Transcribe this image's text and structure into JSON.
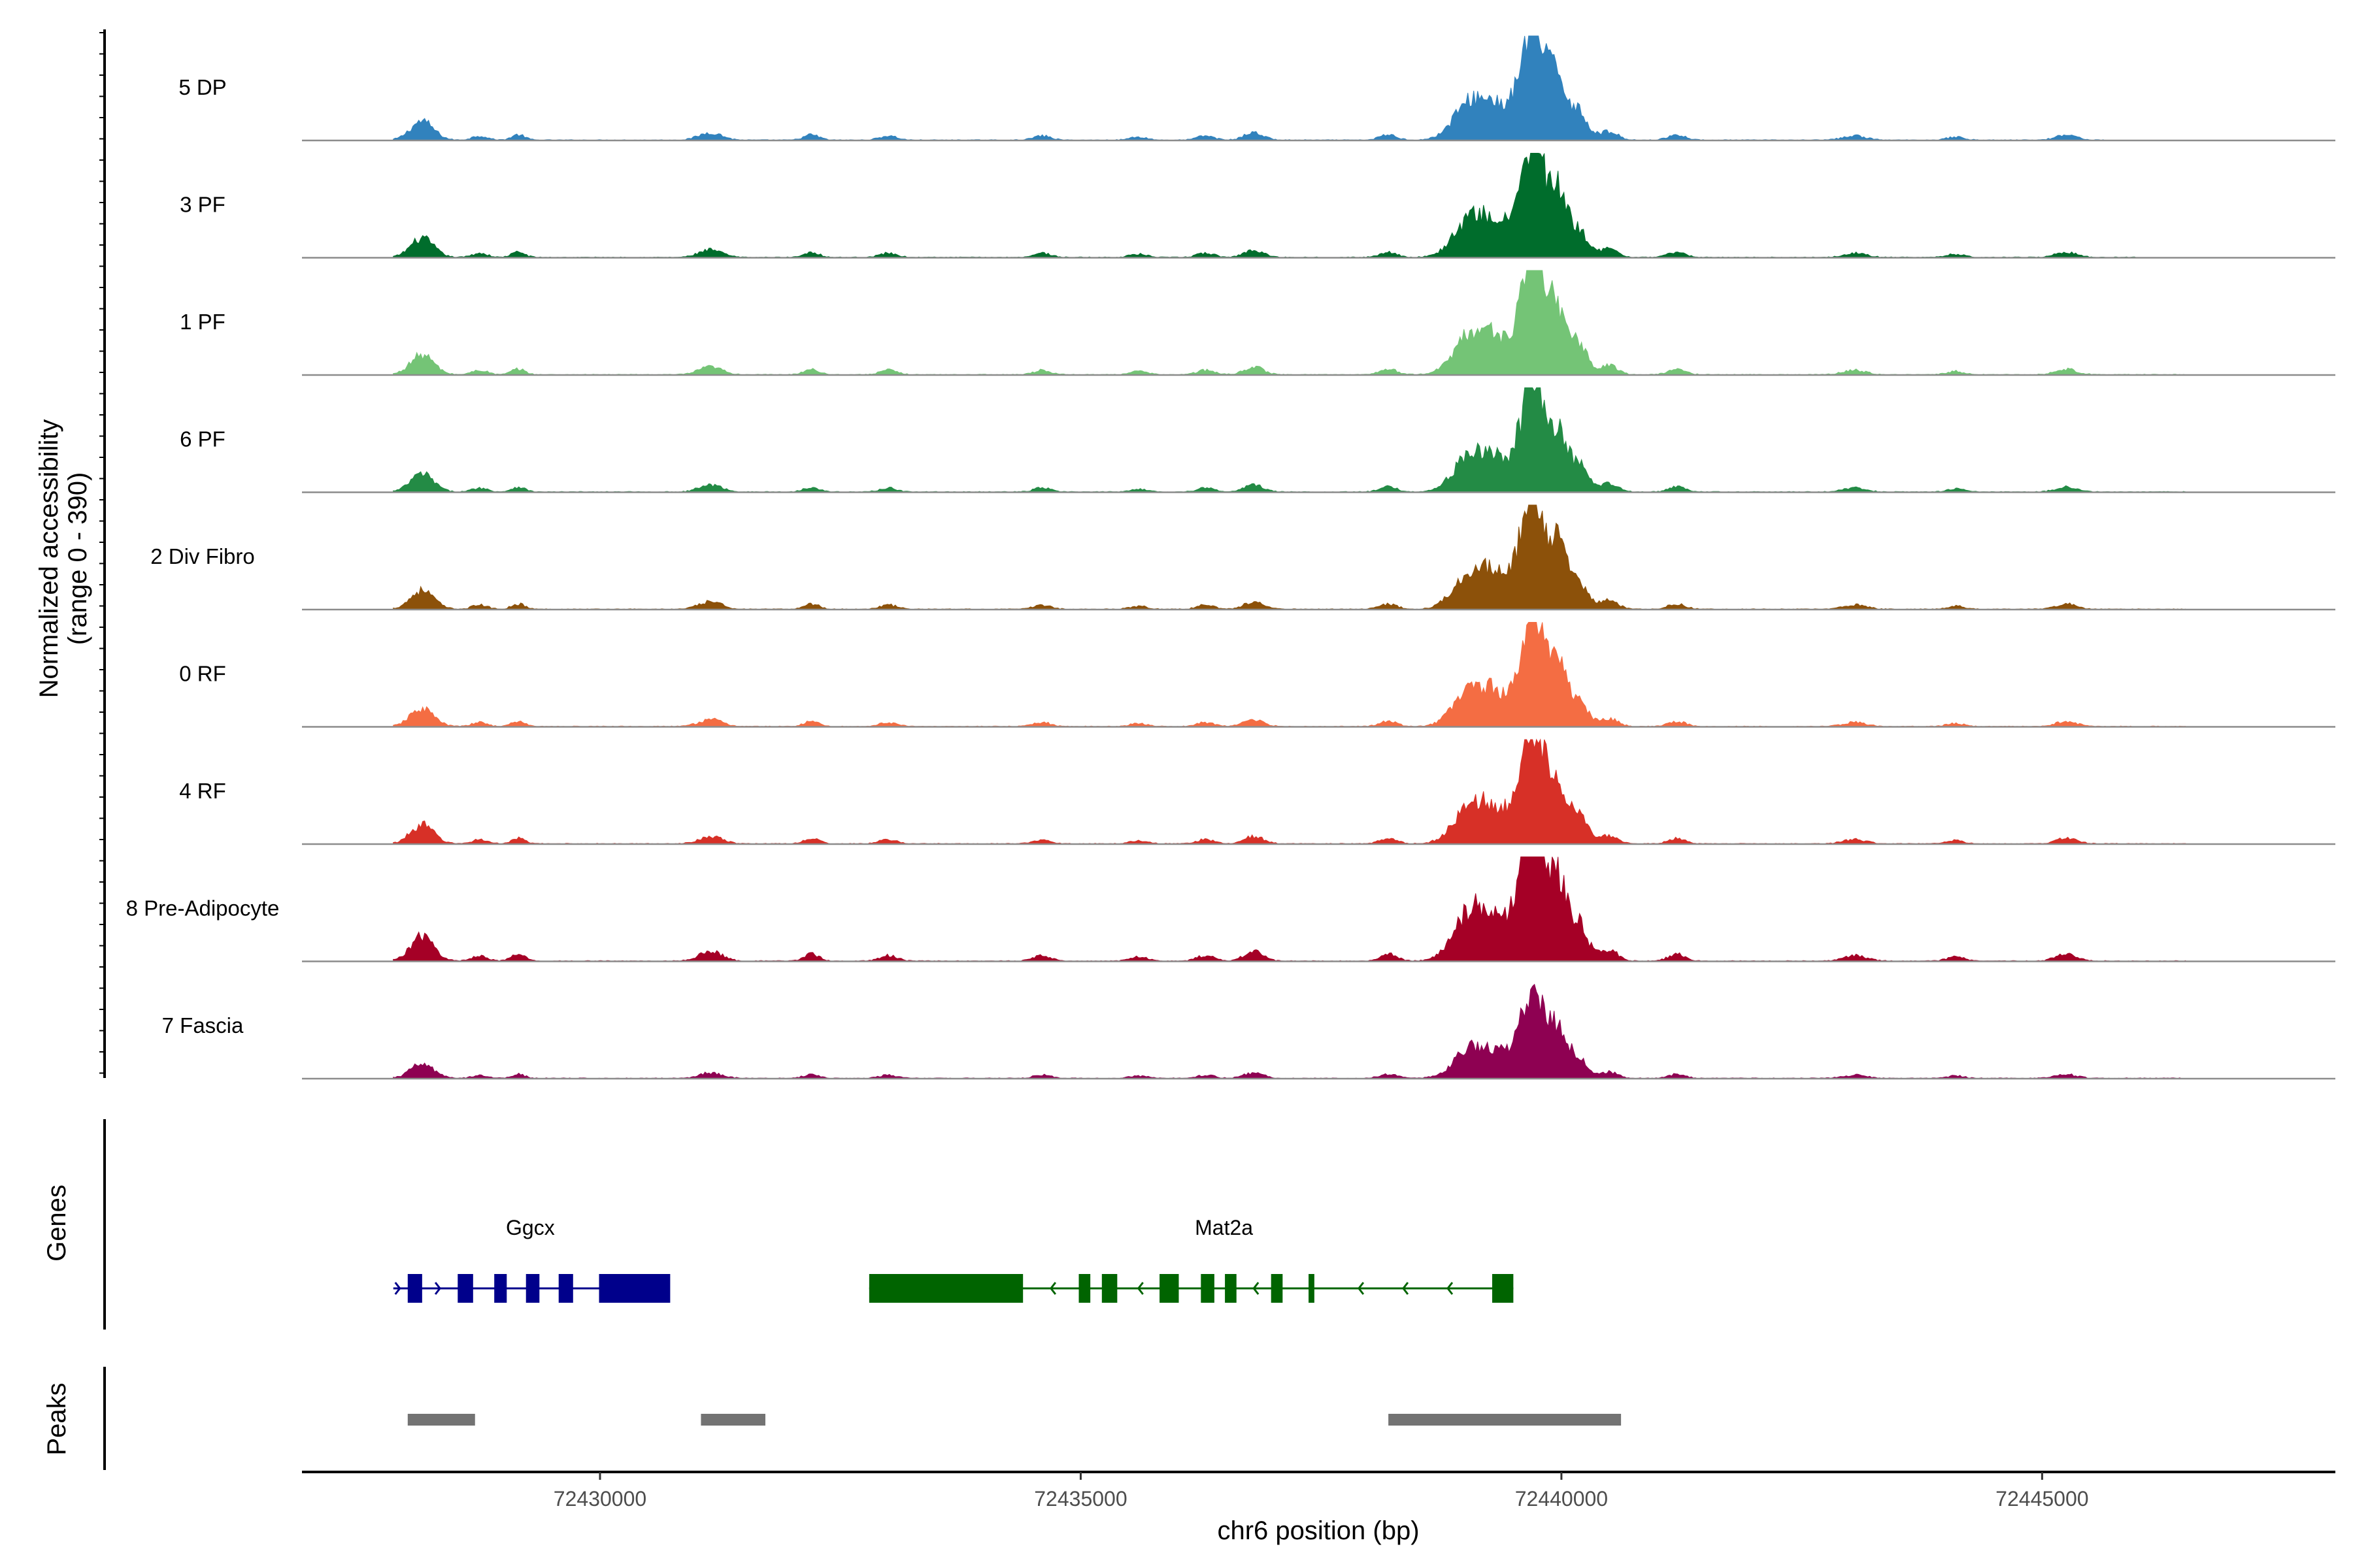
{
  "chart_data": {
    "type": "area",
    "title": "",
    "ylabel_line1": "Normalized accessibility",
    "ylabel_line2": "(range 0 - 390)",
    "ylim": [
      0,
      390
    ],
    "xlabel": "chr6 position (bp)",
    "xlim": [
      72426900,
      72448050
    ],
    "xticks": [
      {
        "value": 72430000,
        "label": "72430000"
      },
      {
        "value": 72435000,
        "label": "72435000"
      },
      {
        "value": 72440000,
        "label": "72440000"
      },
      {
        "value": 72445000,
        "label": "72445000"
      }
    ],
    "peak_shape": [
      {
        "pos": 72428150,
        "h": 0.18,
        "w": 120
      },
      {
        "pos": 72428750,
        "h": 0.04,
        "w": 80
      },
      {
        "pos": 72429150,
        "h": 0.05,
        "w": 70
      },
      {
        "pos": 72431150,
        "h": 0.07,
        "w": 120
      },
      {
        "pos": 72432200,
        "h": 0.05,
        "w": 80
      },
      {
        "pos": 72433000,
        "h": 0.04,
        "w": 90
      },
      {
        "pos": 72434600,
        "h": 0.04,
        "w": 90
      },
      {
        "pos": 72435600,
        "h": 0.03,
        "w": 90
      },
      {
        "pos": 72436300,
        "h": 0.04,
        "w": 90
      },
      {
        "pos": 72436800,
        "h": 0.07,
        "w": 100
      },
      {
        "pos": 72438200,
        "h": 0.05,
        "w": 90
      },
      {
        "pos": 72439050,
        "h": 0.35,
        "w": 170
      },
      {
        "pos": 72439350,
        "h": 0.28,
        "w": 150
      },
      {
        "pos": 72439600,
        "h": 0.5,
        "w": 90
      },
      {
        "pos": 72439700,
        "h": 0.7,
        "w": 70
      },
      {
        "pos": 72439800,
        "h": 0.52,
        "w": 70
      },
      {
        "pos": 72439950,
        "h": 0.58,
        "w": 80
      },
      {
        "pos": 72440150,
        "h": 0.3,
        "w": 110
      },
      {
        "pos": 72440500,
        "h": 0.08,
        "w": 90
      },
      {
        "pos": 72441200,
        "h": 0.05,
        "w": 90
      },
      {
        "pos": 72443050,
        "h": 0.04,
        "w": 120
      },
      {
        "pos": 72444100,
        "h": 0.03,
        "w": 90
      },
      {
        "pos": 72445250,
        "h": 0.05,
        "w": 110
      }
    ],
    "series": [
      {
        "name": "5 DP",
        "color": "#3182BD",
        "scale": 1.0,
        "start": 72427850,
        "end": 72445650
      },
      {
        "name": "3 PF",
        "color": "#006D2C",
        "scale": 1.0,
        "start": 72427850,
        "end": 72446000
      },
      {
        "name": "1 PF",
        "color": "#74C476",
        "scale": 1.05,
        "start": 72427850,
        "end": 72446500
      },
      {
        "name": "6 PF",
        "color": "#238B45",
        "scale": 0.95,
        "start": 72427850,
        "end": 72446500
      },
      {
        "name": "2 Div Fibro",
        "color": "#8C510A",
        "scale": 1.0,
        "start": 72427850,
        "end": 72446500
      },
      {
        "name": "0 RF",
        "color": "#F46D43",
        "scale": 0.95,
        "start": 72427850,
        "end": 72446500
      },
      {
        "name": "4 RF",
        "color": "#D73027",
        "scale": 1.0,
        "start": 72427850,
        "end": 72446500
      },
      {
        "name": "8 Pre-Adipocyte",
        "color": "#A50026",
        "scale": 1.3,
        "start": 72427850,
        "end": 72446500
      },
      {
        "name": "7 Fascia",
        "color": "#8E0152",
        "scale": 0.75,
        "start": 72427850,
        "end": 72446500
      }
    ],
    "genes": [
      {
        "name": "Ggcx",
        "strand": "+",
        "color": "#00008B",
        "start": 72427850,
        "end": 72430700,
        "exons": [
          [
            72428000,
            72428150
          ],
          [
            72428520,
            72428680
          ],
          [
            72428900,
            72429030
          ],
          [
            72429230,
            72429370
          ],
          [
            72429570,
            72429720
          ],
          [
            72429990,
            72430730
          ]
        ]
      },
      {
        "name": "Mat2a",
        "strand": "-",
        "color": "#006400",
        "start": 72432800,
        "end": 72439500,
        "exons": [
          [
            72432800,
            72434400
          ],
          [
            72434980,
            72435100
          ],
          [
            72435220,
            72435380
          ],
          [
            72435820,
            72436020
          ],
          [
            72436250,
            72436390
          ],
          [
            72436500,
            72436620
          ],
          [
            72436980,
            72437100
          ],
          [
            72437370,
            72437430
          ],
          [
            72439280,
            72439500
          ]
        ]
      }
    ],
    "peaks": [
      {
        "start": 72428000,
        "end": 72428700
      },
      {
        "start": 72431050,
        "end": 72431720
      },
      {
        "start": 72438200,
        "end": 72440620
      }
    ],
    "panels": {
      "genes_label": "Genes",
      "peaks_label": "Peaks"
    }
  }
}
